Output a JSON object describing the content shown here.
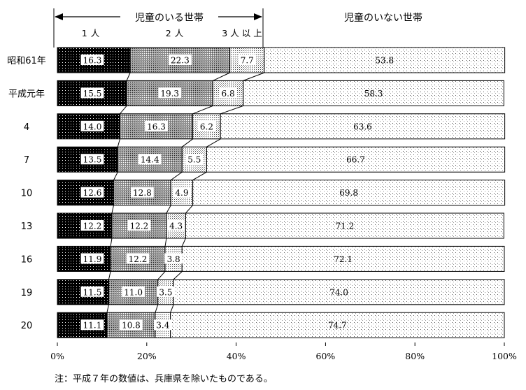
{
  "chart_data": {
    "type": "bar",
    "orientation": "horizontal",
    "stacked": true,
    "categories": [
      "昭和61年",
      "平成元年",
      "4",
      "7",
      "10",
      "13",
      "16",
      "19",
      "20"
    ],
    "series": [
      {
        "name": "1人",
        "values": [
          16.3,
          15.5,
          14.0,
          13.5,
          12.6,
          12.2,
          11.9,
          11.5,
          11.1
        ]
      },
      {
        "name": "2人",
        "values": [
          22.3,
          19.3,
          16.3,
          14.4,
          12.8,
          12.2,
          12.2,
          11.0,
          10.8
        ]
      },
      {
        "name": "3人以上",
        "values": [
          7.7,
          6.8,
          6.2,
          5.5,
          4.9,
          4.3,
          3.8,
          3.5,
          3.4
        ]
      },
      {
        "name": "児童のいない世帯",
        "values": [
          53.8,
          58.3,
          63.6,
          66.7,
          69.8,
          71.2,
          72.1,
          74.0,
          74.7
        ]
      }
    ],
    "xticks": [
      "0%",
      "20%",
      "40%",
      "60%",
      "80%",
      "100%"
    ],
    "xlim": [
      0,
      100
    ],
    "group_label_with_children": "児童のいる世帯",
    "group_label_without_children": "児童のいない世帯",
    "note": "注：平成７年の数値は、兵庫県を除いたものである。"
  }
}
